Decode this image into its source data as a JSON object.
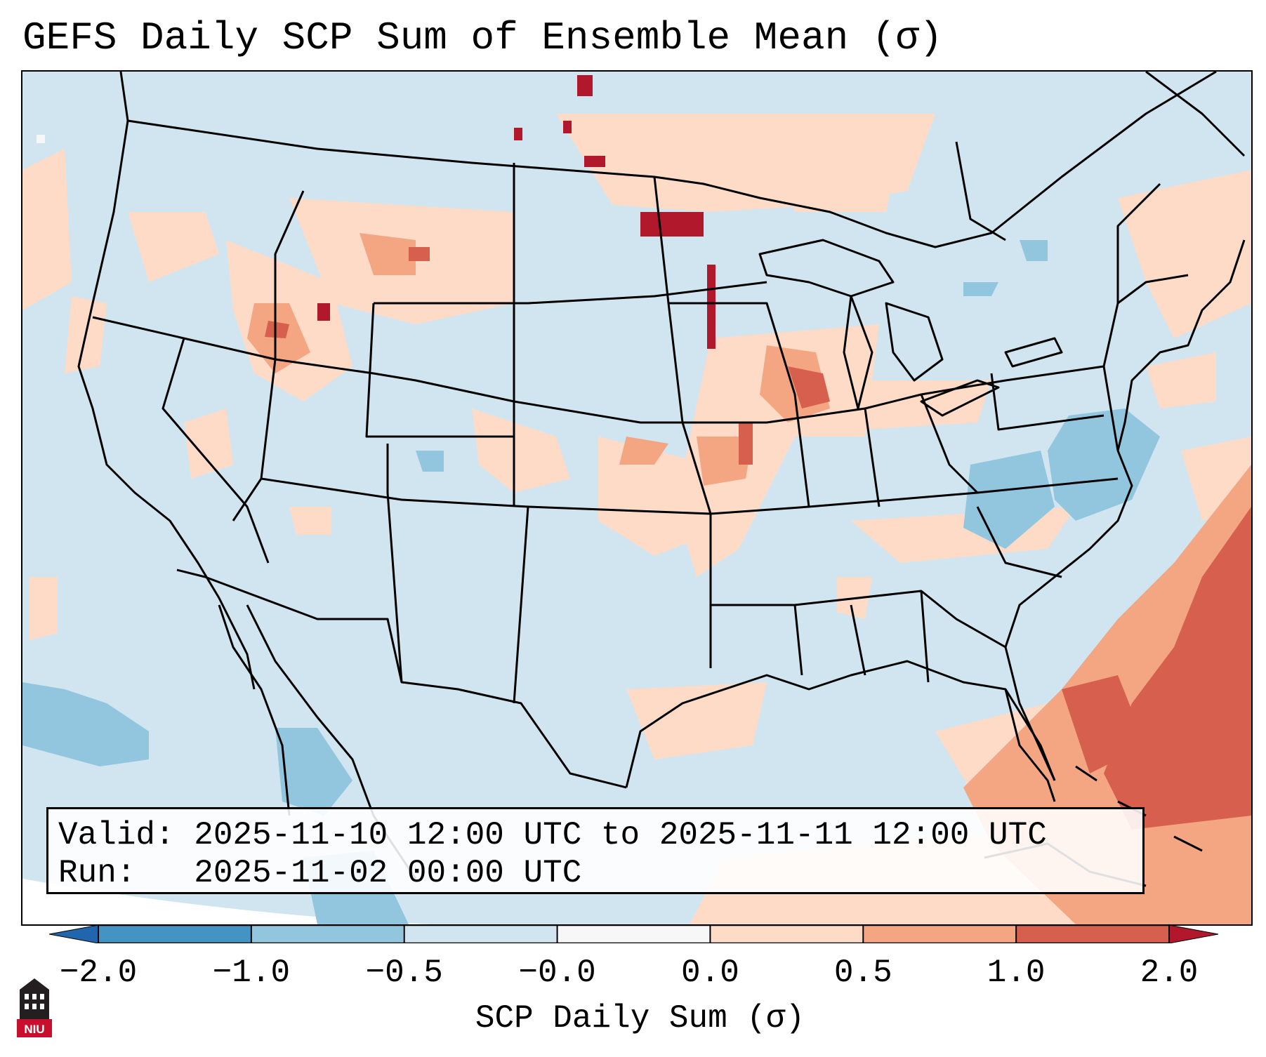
{
  "title": "GEFS Daily SCP Sum of Ensemble Mean (σ)",
  "info": {
    "valid": "Valid: 2025-11-10 12:00 UTC to 2025-11-11 12:00 UTC",
    "run": "Run:   2025-11-02 00:00 UTC"
  },
  "colorbar": {
    "label": "SCP Daily Sum (σ)",
    "ticks": [
      "−2.0",
      "−1.0",
      "−0.5",
      "−0.0",
      "0.0",
      "0.5",
      "1.0",
      "2.0"
    ],
    "colors": [
      "#2166ac",
      "#4393c3",
      "#92c5de",
      "#d1e5f0",
      "#f7f7f7",
      "#fddbc7",
      "#f4a582",
      "#d6604d",
      "#b2182b"
    ]
  },
  "map_field": {
    "background_bin": "-0.5 to -0.0",
    "features": [
      {
        "region": "Southeast Atlantic / Caribbean",
        "bin": "1.0 to 2.0"
      },
      {
        "region": "Offshore Atlantic band",
        "bin": "0.5 to 1.0"
      },
      {
        "region": "Off Carolinas",
        "bin": "-1.0 to -0.5"
      },
      {
        "region": "Minnesota / North Dakota",
        "bin": "> 2.0"
      },
      {
        "region": "Illinois / Missouri",
        "bin": "0.5 to 2.0"
      },
      {
        "region": "Idaho / Montana",
        "bin": "0.0 to 2.0"
      },
      {
        "region": "Baja California / Pacific",
        "bin": "-1.0 to -0.5"
      }
    ]
  },
  "logo_text": "NIU"
}
